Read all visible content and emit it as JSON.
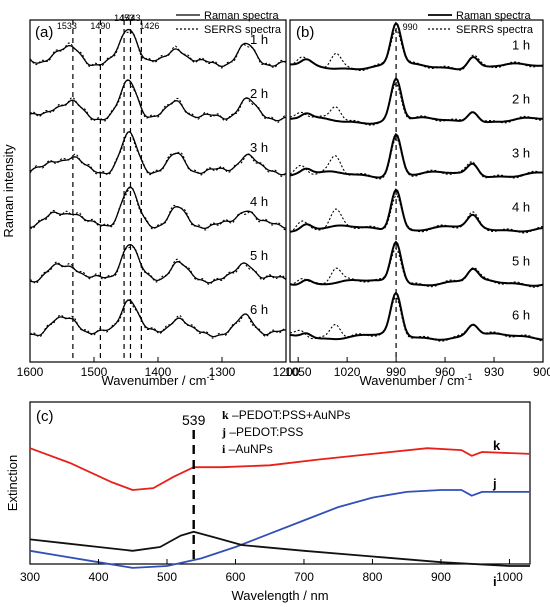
{
  "chart_data": [
    {
      "panel": "(a)",
      "type": "line",
      "xlabel": "Wavenumber / cm",
      "xlabel_sup": "-1",
      "ylabel": "Raman intensity",
      "xlim": [
        1600,
        1200
      ],
      "xticks": [
        1600,
        1500,
        1400,
        1300,
        1200
      ],
      "legend": [
        "Raman spectra",
        "SERRS spectra"
      ],
      "legend_position": "top-right",
      "peak_lines": [
        1533,
        1490,
        1453,
        1443,
        1426
      ],
      "traces": [
        "1 h",
        "2 h",
        "3 h",
        "4 h",
        "5 h",
        "6 h"
      ],
      "raman_peaks": [
        [
          1560,
          0.18
        ],
        [
          1533,
          0.22
        ],
        [
          1445,
          0.62
        ],
        [
          1370,
          0.28
        ],
        [
          1262,
          0.3
        ]
      ],
      "serrs_peaks": [
        [
          1560,
          0.18
        ],
        [
          1533,
          0.24
        ],
        [
          1445,
          0.6
        ],
        [
          1370,
          0.3
        ],
        [
          1262,
          0.28
        ]
      ]
    },
    {
      "panel": "(b)",
      "type": "line",
      "xlabel": "Wavenumber / cm",
      "xlabel_sup": "-1",
      "xlim": [
        1055,
        900
      ],
      "xticks": [
        1050,
        1020,
        990,
        960,
        930,
        900
      ],
      "legend": [
        "Raman spectra",
        "SERRS spectra"
      ],
      "legend_position": "top-right",
      "peak_lines": [
        990
      ],
      "traces": [
        "1 h",
        "2 h",
        "3 h",
        "4 h",
        "5 h",
        "6 h"
      ],
      "raman_peaks": [
        [
          990,
          0.8
        ],
        [
          943,
          0.22
        ],
        [
          1045,
          0.1
        ]
      ],
      "serrs_peaks": [
        [
          990,
          0.7
        ],
        [
          943,
          0.25
        ],
        [
          1027,
          0.3
        ],
        [
          1048,
          0.15
        ]
      ]
    },
    {
      "panel": "(c)",
      "type": "line",
      "xlabel": "Wavelength / nm",
      "ylabel": "Extinction",
      "xlim": [
        300,
        1030
      ],
      "xticks": [
        300,
        400,
        500,
        600,
        700,
        800,
        900,
        1000
      ],
      "annotation": "539",
      "annotation_x": 539,
      "series": [
        {
          "id": "k",
          "name": "PEDOT:PSS+AuNPs",
          "color": "#e8201a",
          "x": [
            300,
            360,
            420,
            450,
            480,
            510,
            539,
            580,
            650,
            720,
            800,
            880,
            930,
            945,
            960,
            1030
          ],
          "y": [
            0.82,
            0.74,
            0.64,
            0.6,
            0.61,
            0.67,
            0.72,
            0.72,
            0.73,
            0.76,
            0.79,
            0.82,
            0.81,
            0.78,
            0.8,
            0.79
          ]
        },
        {
          "id": "j",
          "name": "PEDOT:PSS",
          "color": "#3050b8",
          "x": [
            300,
            350,
            400,
            450,
            500,
            550,
            600,
            650,
            700,
            750,
            800,
            850,
            900,
            930,
            945,
            960,
            1030
          ],
          "y": [
            0.28,
            0.25,
            0.22,
            0.19,
            0.2,
            0.24,
            0.3,
            0.37,
            0.44,
            0.51,
            0.56,
            0.59,
            0.6,
            0.6,
            0.57,
            0.59,
            0.59
          ]
        },
        {
          "id": "i",
          "name": "AuNPs",
          "color": "#111111",
          "x": [
            300,
            350,
            400,
            450,
            490,
            520,
            539,
            570,
            610,
            700,
            800,
            900,
            1000,
            1030
          ],
          "y": [
            0.34,
            0.32,
            0.3,
            0.28,
            0.3,
            0.36,
            0.38,
            0.35,
            0.31,
            0.28,
            0.25,
            0.22,
            0.2,
            0.2
          ]
        }
      ],
      "labels": {
        "k": "k",
        "j": "j",
        "i": "i"
      },
      "legend_sep": " –"
    }
  ]
}
